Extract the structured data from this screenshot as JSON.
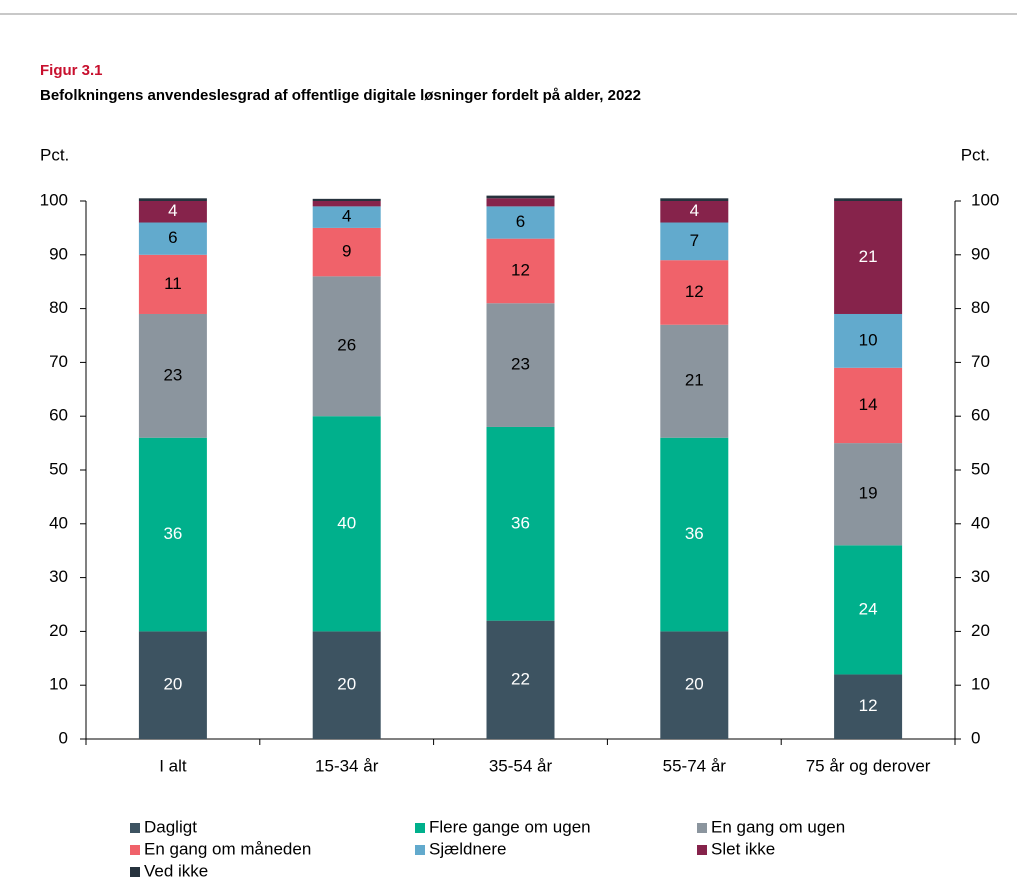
{
  "chart_data": {
    "type": "stacked_bar",
    "figure_label": "Figur 3.1",
    "title": "Befolkningens anvendeslesgrad af offentlige digitale løsninger fordelt på alder, 2022",
    "ylabel": "Pct.",
    "y2label": "Pct.",
    "categories": [
      "I alt",
      "15-34 år",
      "35-54 år",
      "55-74 år",
      "75 år og derover"
    ],
    "series": [
      {
        "name": "Dagligt",
        "color": "#3d5361",
        "label_color": "#ffffff",
        "values": [
          20,
          20,
          22,
          20,
          12
        ]
      },
      {
        "name": "Flere gange om ugen",
        "color": "#00b08c",
        "label_color": "#ffffff",
        "values": [
          36,
          40,
          36,
          36,
          24
        ]
      },
      {
        "name": "En gang om ugen",
        "color": "#8b959e",
        "label_color": "#000000",
        "values": [
          23,
          26,
          23,
          21,
          19
        ]
      },
      {
        "name": "En gang om måneden",
        "color": "#f0626a",
        "label_color": "#000000",
        "values": [
          11,
          9,
          12,
          12,
          14
        ]
      },
      {
        "name": "Sjældnere",
        "color": "#62aacd",
        "label_color": "#000000",
        "values": [
          6,
          4,
          6,
          7,
          10
        ]
      },
      {
        "name": "Slet ikke",
        "color": "#86234b",
        "label_color": "#ffffff",
        "values": [
          4,
          1,
          1.5,
          4,
          21
        ]
      },
      {
        "name": "Ved ikke",
        "color": "#26323d",
        "label_color": "#ffffff",
        "values": [
          0.5,
          0.4,
          0.5,
          0.5,
          0.5
        ]
      }
    ],
    "ylim": [
      0,
      100
    ],
    "yticks": [
      0,
      10,
      20,
      30,
      40,
      50,
      60,
      70,
      80,
      90,
      100
    ],
    "y2lim": [
      0,
      100
    ],
    "y2ticks": [
      0,
      10,
      20,
      30,
      40,
      50,
      60,
      70,
      80,
      90,
      100
    ],
    "legend": "bottom"
  }
}
